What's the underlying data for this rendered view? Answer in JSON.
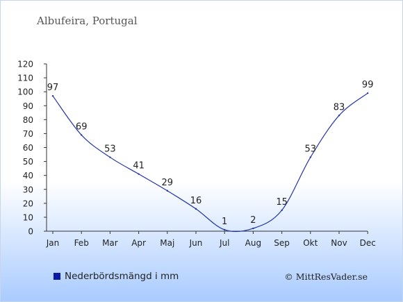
{
  "chart_data": {
    "type": "line",
    "title": "Albufeira, Portugal",
    "categories": [
      "Jan",
      "Feb",
      "Mar",
      "Apr",
      "Maj",
      "Jun",
      "Jul",
      "Aug",
      "Sep",
      "Okt",
      "Nov",
      "Dec"
    ],
    "series": [
      {
        "name": "Nederbördsmängd i mm",
        "values": [
          97,
          69,
          53,
          41,
          29,
          16,
          1,
          2,
          15,
          53,
          83,
          99
        ]
      }
    ],
    "data_labels": [
      "97",
      "69",
      "53",
      "41",
      "29",
      "16",
      "1",
      "2",
      "15",
      "53",
      "83",
      "99"
    ],
    "ylim": [
      0,
      120
    ],
    "yticks": [
      "0",
      "10",
      "20",
      "30",
      "40",
      "50",
      "60",
      "70",
      "80",
      "90",
      "100",
      "110",
      "120"
    ],
    "grid": false,
    "legend_position": "bottom-left",
    "colors": {
      "line": "#2233aa",
      "legend_swatch": "#0a1aa6",
      "text": "#222222"
    }
  },
  "footer": {
    "credit": "© MittResVader.se"
  }
}
